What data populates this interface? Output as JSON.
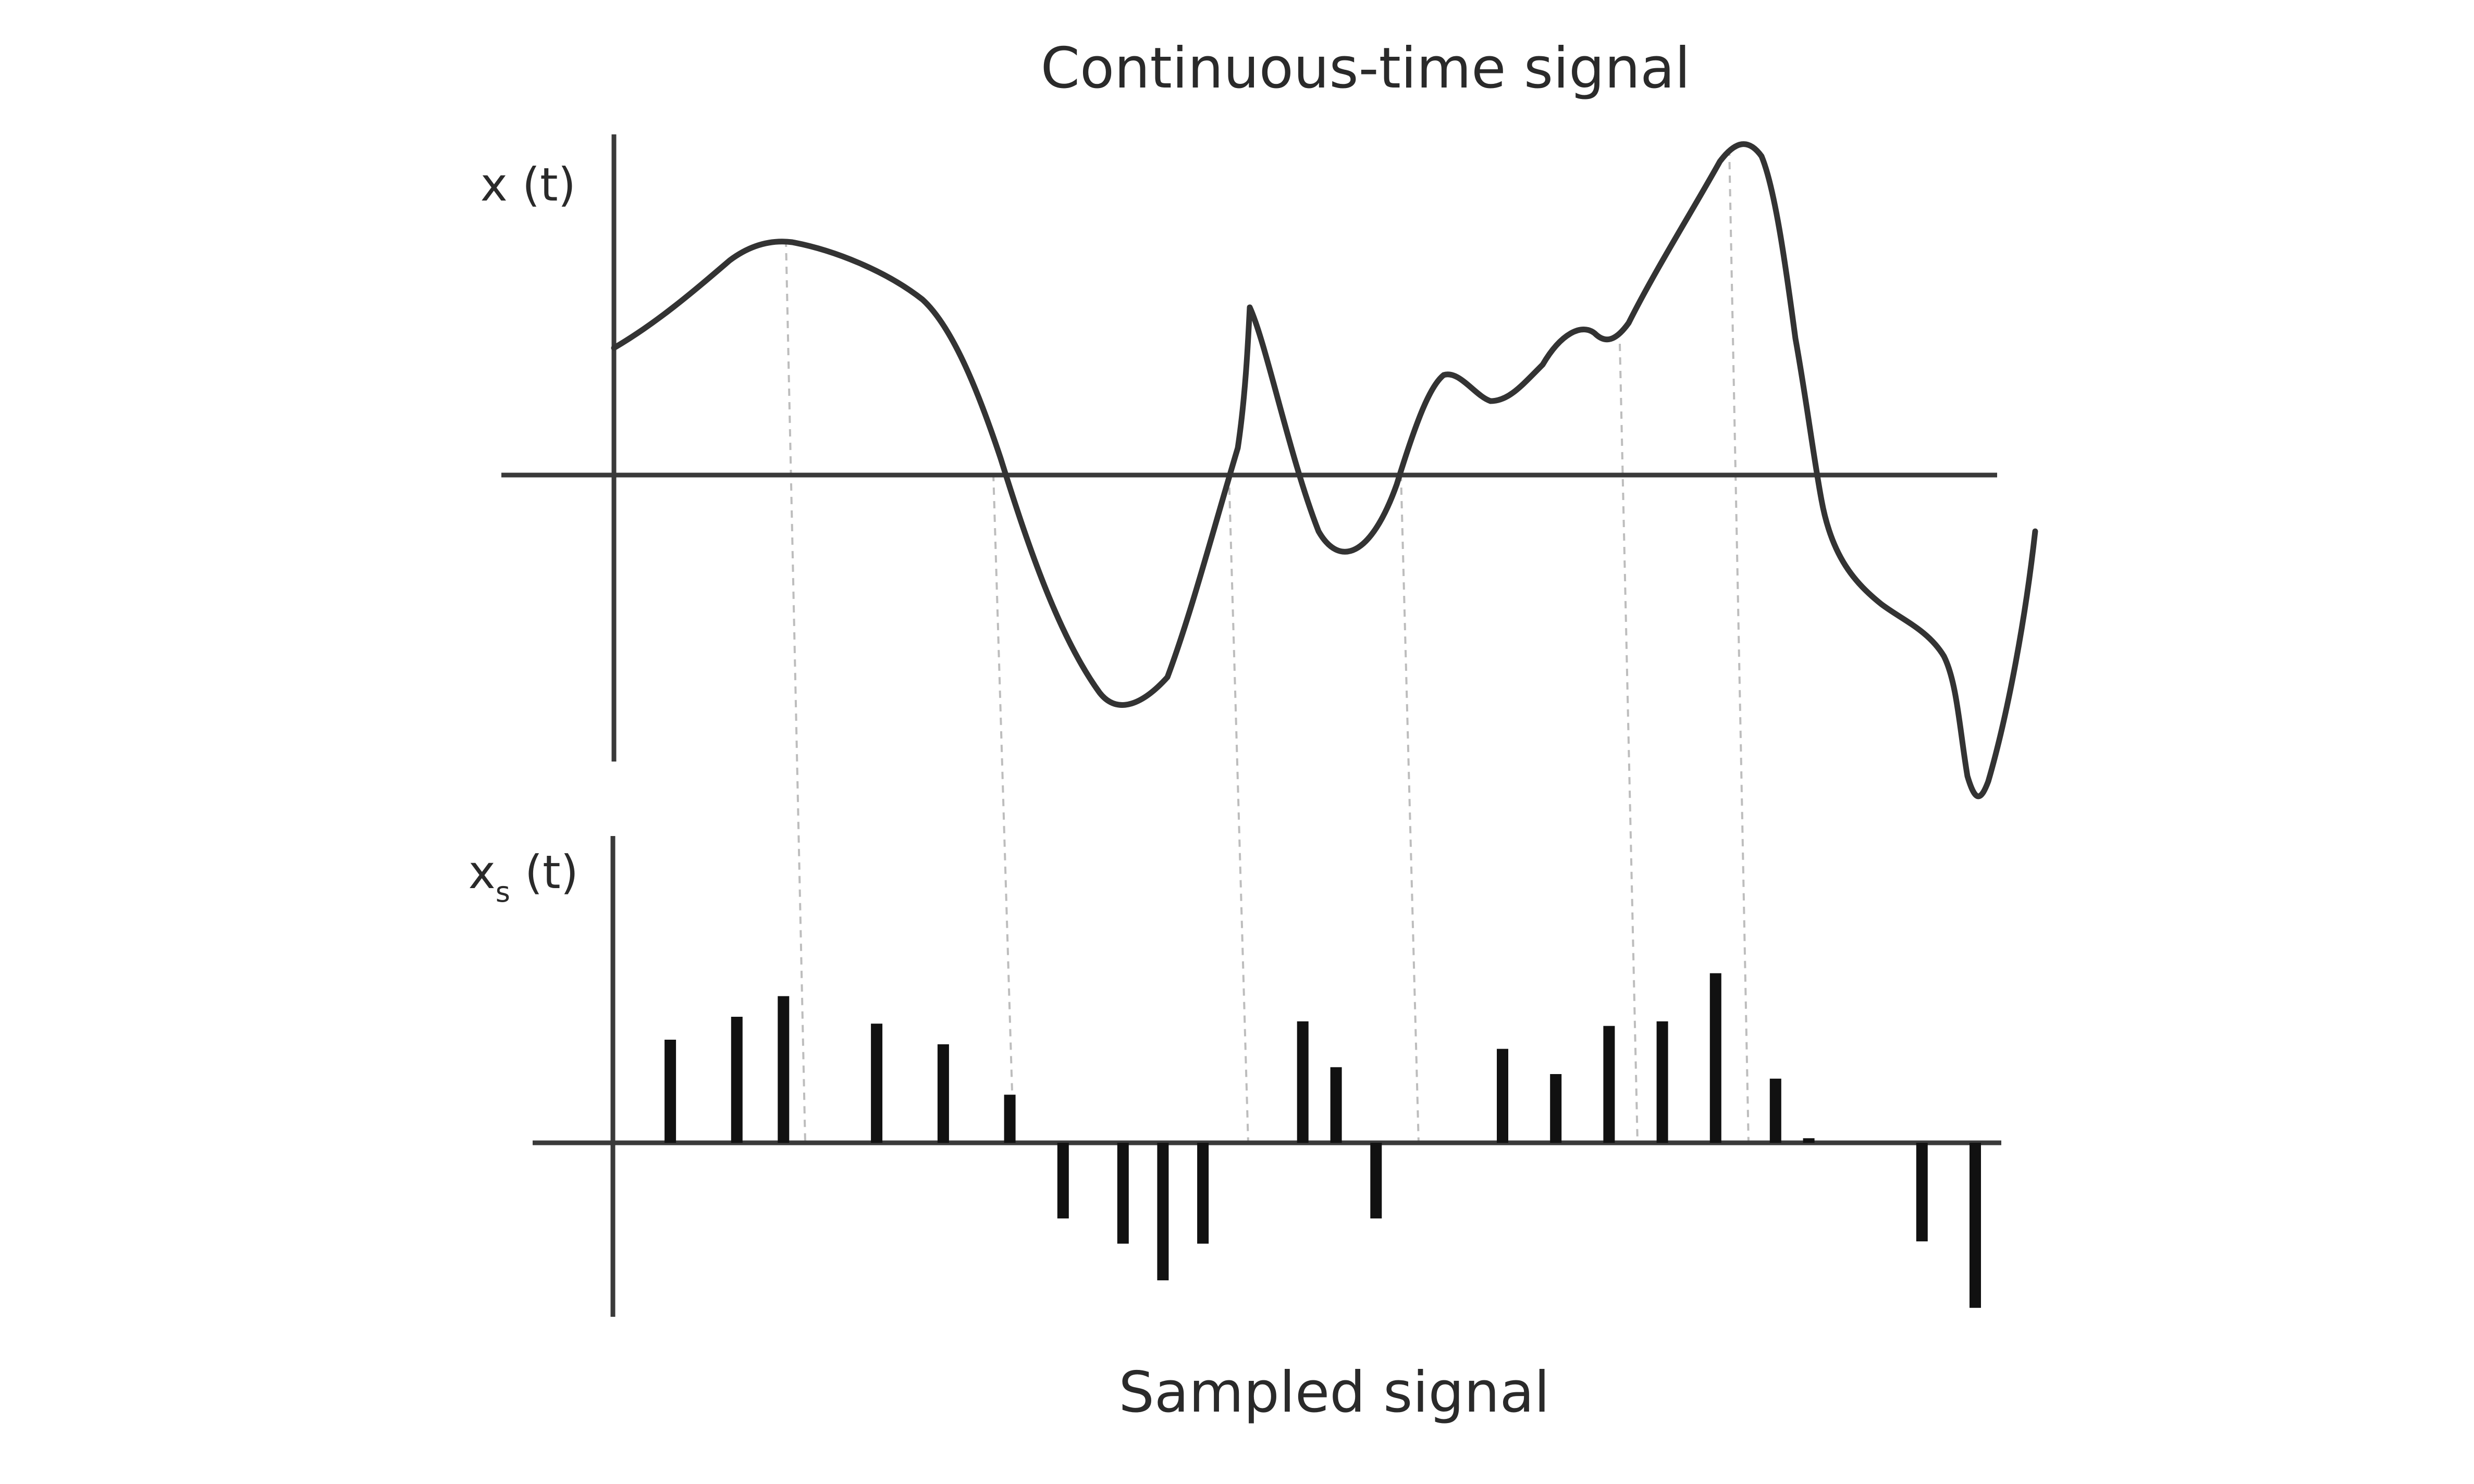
{
  "diagram": {
    "top_title": "Continuous-time signal",
    "bottom_title": "Sampled signal",
    "top_axis_label": "x (t)",
    "bottom_axis_label_main": "x",
    "bottom_axis_label_sub": "s",
    "bottom_axis_label_rest": " (t)"
  },
  "colors": {
    "curve": "#333333",
    "axes": "#3a3a3a",
    "samples": "#111111",
    "guides": "#bdbdbd"
  },
  "samples": [
    {
      "t": 0.02,
      "value": 0.45
    },
    {
      "t": 0.07,
      "value": 0.55
    },
    {
      "t": 0.105,
      "value": 0.64
    },
    {
      "t": 0.175,
      "value": 0.52
    },
    {
      "t": 0.225,
      "value": 0.43
    },
    {
      "t": 0.275,
      "value": 0.21
    },
    {
      "t": 0.315,
      "value": -0.33
    },
    {
      "t": 0.36,
      "value": -0.44
    },
    {
      "t": 0.39,
      "value": -0.6
    },
    {
      "t": 0.42,
      "value": -0.44
    },
    {
      "t": 0.495,
      "value": 0.53
    },
    {
      "t": 0.52,
      "value": 0.33
    },
    {
      "t": 0.55,
      "value": -0.33
    },
    {
      "t": 0.645,
      "value": 0.41
    },
    {
      "t": 0.685,
      "value": 0.3
    },
    {
      "t": 0.725,
      "value": 0.51
    },
    {
      "t": 0.765,
      "value": 0.53
    },
    {
      "t": 0.805,
      "value": 0.74
    },
    {
      "t": 0.85,
      "value": 0.28
    },
    {
      "t": 0.875,
      "value": 0.02
    },
    {
      "t": 0.96,
      "value": -0.43
    },
    {
      "t": 1.0,
      "value": -0.72
    }
  ]
}
